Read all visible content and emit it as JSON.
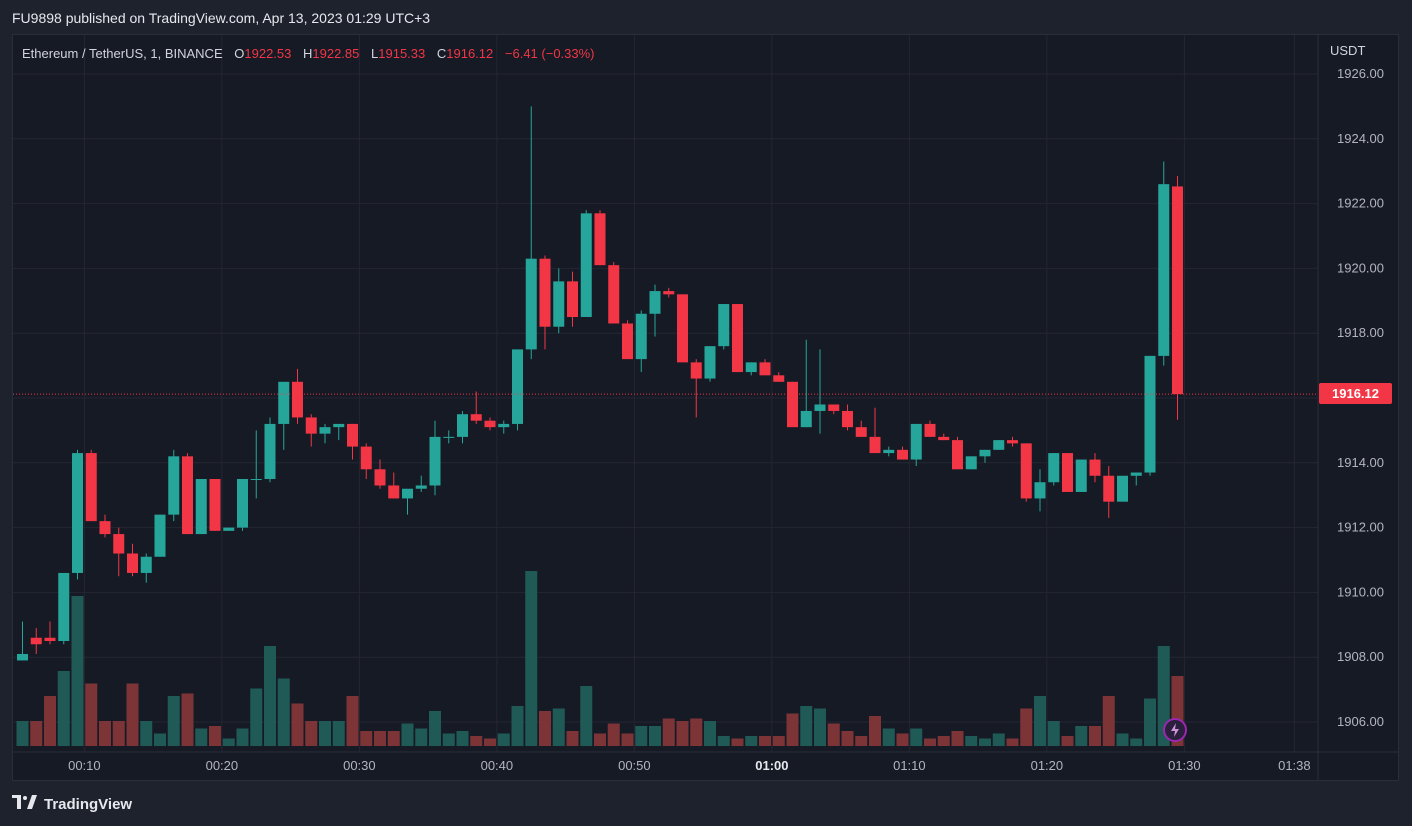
{
  "header": {
    "published_text": "FU9898 published on TradingView.com, Apr 13, 2023 01:29 UTC+3"
  },
  "legend": {
    "symbol": "Ethereum / TetherUS, 1, BINANCE",
    "open_key": "O",
    "open": "1922.53",
    "high_key": "H",
    "high": "1922.85",
    "low_key": "L",
    "low": "1915.33",
    "close_key": "C",
    "close": "1916.12",
    "change": "−6.41 (−0.33%)"
  },
  "currency": "USDT",
  "last_price": "1916.12",
  "footer": {
    "brand": "TradingView"
  },
  "colors": {
    "up": "#26a69a",
    "down": "#f23645",
    "up_vol": "#1f5a56",
    "down_vol": "#7c3436",
    "grid": "#242733",
    "text": "#b2b5be"
  },
  "chart_data": {
    "type": "candlestick",
    "ylim": [
      1905.2,
      1926.6
    ],
    "y_ticks": [
      "1906.00",
      "1908.00",
      "1910.00",
      "1912.00",
      "1914.00",
      "1916.00",
      "1918.00",
      "1920.00",
      "1922.00",
      "1924.00",
      "1926.00"
    ],
    "x_ticks": [
      {
        "label": "00:10",
        "index": 4.5,
        "bold": false
      },
      {
        "label": "00:20",
        "index": 14.5,
        "bold": false
      },
      {
        "label": "00:30",
        "index": 24.5,
        "bold": false
      },
      {
        "label": "00:40",
        "index": 34.5,
        "bold": false
      },
      {
        "label": "00:50",
        "index": 44.5,
        "bold": false
      },
      {
        "label": "01:00",
        "index": 54.5,
        "bold": true
      },
      {
        "label": "01:10",
        "index": 64.5,
        "bold": false
      },
      {
        "label": "01:20",
        "index": 74.5,
        "bold": false
      },
      {
        "label": "01:30",
        "index": 84.5,
        "bold": false
      },
      {
        "label": "01:38",
        "index": 92.5,
        "bold": false
      }
    ],
    "candles": [
      [
        1907.9,
        1909.1,
        1907.9,
        1908.1,
        1
      ],
      [
        1908.6,
        1908.9,
        1908.1,
        1908.4,
        1
      ],
      [
        1908.6,
        1909.1,
        1908.4,
        1908.5,
        2
      ],
      [
        1908.5,
        1910.6,
        1908.4,
        1910.6,
        3
      ],
      [
        1910.6,
        1914.4,
        1910.4,
        1914.3,
        6
      ],
      [
        1914.3,
        1914.4,
        1912.2,
        1912.2,
        2.5
      ],
      [
        1912.2,
        1912.4,
        1911.7,
        1911.8,
        1
      ],
      [
        1911.8,
        1912.0,
        1910.5,
        1911.2,
        1
      ],
      [
        1911.2,
        1911.5,
        1910.5,
        1910.6,
        2.5
      ],
      [
        1910.6,
        1911.2,
        1910.3,
        1911.1,
        1
      ],
      [
        1911.1,
        1912.4,
        1911.1,
        1912.4,
        0.5
      ],
      [
        1912.4,
        1914.4,
        1912.2,
        1914.2,
        2
      ],
      [
        1914.2,
        1914.3,
        1911.8,
        1911.8,
        2.1
      ],
      [
        1911.8,
        1913.5,
        1911.8,
        1913.5,
        0.7
      ],
      [
        1913.5,
        1913.5,
        1911.9,
        1911.9,
        0.8
      ],
      [
        1911.9,
        1912.0,
        1911.9,
        1912.0,
        0.3
      ],
      [
        1912.0,
        1913.5,
        1911.9,
        1913.5,
        0.7
      ],
      [
        1913.5,
        1915.0,
        1912.9,
        1913.5,
        2.3
      ],
      [
        1913.5,
        1915.4,
        1913.4,
        1915.2,
        4
      ],
      [
        1915.2,
        1916.3,
        1914.4,
        1916.5,
        2.7
      ],
      [
        1916.5,
        1916.9,
        1915.2,
        1915.4,
        1.7
      ],
      [
        1915.4,
        1915.5,
        1914.5,
        1914.9,
        1
      ],
      [
        1914.9,
        1915.2,
        1914.6,
        1915.1,
        1
      ],
      [
        1915.1,
        1915.2,
        1914.7,
        1915.2,
        1
      ],
      [
        1915.2,
        1915.2,
        1914.1,
        1914.5,
        2
      ],
      [
        1914.5,
        1914.6,
        1913.5,
        1913.8,
        0.6
      ],
      [
        1913.8,
        1914.1,
        1913.2,
        1913.3,
        0.6
      ],
      [
        1913.3,
        1913.7,
        1912.9,
        1912.9,
        0.6
      ],
      [
        1912.9,
        1913.0,
        1912.4,
        1913.2,
        0.9
      ],
      [
        1913.2,
        1913.6,
        1913.1,
        1913.3,
        0.7
      ],
      [
        1913.3,
        1915.3,
        1913.0,
        1914.8,
        1.4
      ],
      [
        1914.8,
        1915.0,
        1914.6,
        1914.8,
        0.5
      ],
      [
        1914.8,
        1915.6,
        1914.6,
        1915.5,
        0.6
      ],
      [
        1915.5,
        1916.2,
        1915.2,
        1915.3,
        0.4
      ],
      [
        1915.3,
        1915.4,
        1915.0,
        1915.1,
        0.3
      ],
      [
        1915.1,
        1915.3,
        1914.9,
        1915.2,
        0.5
      ],
      [
        1915.2,
        1917.5,
        1915.0,
        1917.5,
        1.6
      ],
      [
        1917.5,
        1925.0,
        1917.2,
        1920.3,
        7
      ],
      [
        1920.3,
        1920.4,
        1917.5,
        1918.2,
        1.4
      ],
      [
        1918.2,
        1920.0,
        1918.0,
        1919.6,
        1.5
      ],
      [
        1919.6,
        1919.9,
        1918.2,
        1918.5,
        0.6
      ],
      [
        1918.5,
        1921.8,
        1918.5,
        1921.7,
        2.4
      ],
      [
        1921.7,
        1921.8,
        1920.1,
        1920.1,
        0.5
      ],
      [
        1920.1,
        1920.2,
        1918.3,
        1918.3,
        0.9
      ],
      [
        1918.3,
        1918.4,
        1917.2,
        1917.2,
        0.5
      ],
      [
        1917.2,
        1918.7,
        1916.8,
        1918.6,
        0.8
      ],
      [
        1918.6,
        1919.5,
        1917.9,
        1919.3,
        0.8
      ],
      [
        1919.3,
        1919.4,
        1919.1,
        1919.2,
        1.1
      ],
      [
        1919.2,
        1919.2,
        1917.1,
        1917.1,
        1
      ],
      [
        1917.1,
        1917.2,
        1915.4,
        1916.6,
        1.1
      ],
      [
        1916.6,
        1917.6,
        1916.5,
        1917.6,
        1
      ],
      [
        1917.6,
        1918.9,
        1917.5,
        1918.9,
        0.4
      ],
      [
        1918.9,
        1918.9,
        1916.8,
        1916.8,
        0.3
      ],
      [
        1916.8,
        1917.1,
        1916.7,
        1917.1,
        0.4
      ],
      [
        1917.1,
        1917.2,
        1916.7,
        1916.7,
        0.4
      ],
      [
        1916.7,
        1916.8,
        1916.5,
        1916.5,
        0.4
      ],
      [
        1916.5,
        1916.5,
        1915.2,
        1915.1,
        1.3
      ],
      [
        1915.1,
        1917.8,
        1915.1,
        1915.6,
        1.6
      ],
      [
        1915.6,
        1917.5,
        1914.9,
        1915.8,
        1.5
      ],
      [
        1915.8,
        1915.8,
        1915.5,
        1915.6,
        0.9
      ],
      [
        1915.6,
        1915.8,
        1915.0,
        1915.1,
        0.6
      ],
      [
        1915.1,
        1915.3,
        1914.8,
        1914.8,
        0.4
      ],
      [
        1914.8,
        1915.7,
        1914.3,
        1914.3,
        1.2
      ],
      [
        1914.3,
        1914.5,
        1914.2,
        1914.4,
        0.7
      ],
      [
        1914.4,
        1914.5,
        1914.1,
        1914.1,
        0.5
      ],
      [
        1914.1,
        1915.2,
        1913.9,
        1915.2,
        0.7
      ],
      [
        1915.2,
        1915.3,
        1914.8,
        1914.8,
        0.3
      ],
      [
        1914.8,
        1914.9,
        1914.7,
        1914.7,
        0.4
      ],
      [
        1914.7,
        1914.8,
        1913.8,
        1913.8,
        0.6
      ],
      [
        1913.8,
        1914.2,
        1913.8,
        1914.2,
        0.4
      ],
      [
        1914.2,
        1914.4,
        1914.0,
        1914.4,
        0.3
      ],
      [
        1914.4,
        1914.7,
        1914.4,
        1914.7,
        0.5
      ],
      [
        1914.7,
        1914.8,
        1914.5,
        1914.6,
        0.3
      ],
      [
        1914.6,
        1914.6,
        1912.8,
        1912.9,
        1.5
      ],
      [
        1912.9,
        1913.8,
        1912.5,
        1913.4,
        2
      ],
      [
        1913.4,
        1914.3,
        1913.3,
        1914.3,
        1
      ],
      [
        1914.3,
        1914.3,
        1913.1,
        1913.1,
        0.4
      ],
      [
        1913.1,
        1914.1,
        1913.1,
        1914.1,
        0.8
      ],
      [
        1914.1,
        1914.3,
        1913.4,
        1913.6,
        0.8
      ],
      [
        1913.6,
        1913.9,
        1912.3,
        1912.8,
        2
      ],
      [
        1912.8,
        1913.6,
        1912.8,
        1913.6,
        0.5
      ],
      [
        1913.6,
        1913.7,
        1913.3,
        1913.7,
        0.3
      ],
      [
        1913.7,
        1917.3,
        1913.6,
        1917.3,
        1.9
      ],
      [
        1917.3,
        1923.3,
        1917.0,
        1922.6,
        4
      ],
      [
        1922.53,
        1922.85,
        1915.33,
        1916.12,
        2.8
      ]
    ]
  }
}
